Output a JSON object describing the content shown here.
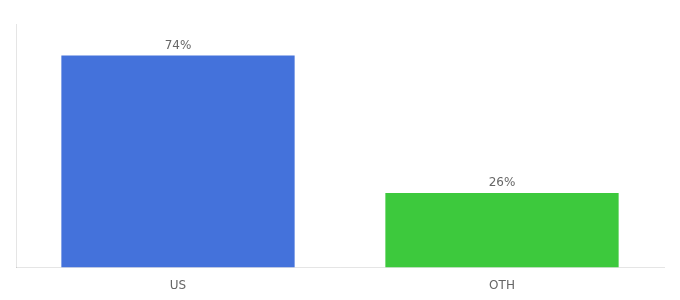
{
  "chart_data": {
    "type": "bar",
    "categories": [
      "US",
      "OTH"
    ],
    "values": [
      74,
      26
    ],
    "value_labels": [
      "74%",
      "26%"
    ],
    "colors": [
      "#4472db",
      "#3dc93d"
    ],
    "ylim": [
      0,
      85
    ],
    "grid": false,
    "data_labels": true,
    "tick_labels": "x"
  }
}
